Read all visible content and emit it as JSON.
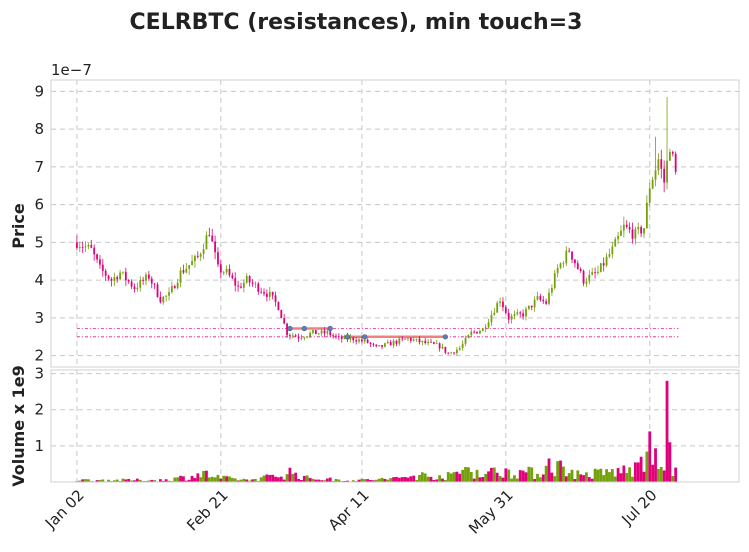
{
  "chart_data": {
    "type": "candlestick",
    "title": "CELRBTC (resistances), min touch=3",
    "price_panel": {
      "ylabel": "Price",
      "exponent_label": "1e−7",
      "yticks": [
        "2",
        "3",
        "4",
        "5",
        "6",
        "7",
        "8",
        "9"
      ],
      "ylim": [
        1.7,
        9.3
      ]
    },
    "volume_panel": {
      "ylabel": "Volume x 1e9",
      "yticks": [
        "1",
        "2",
        "3"
      ],
      "ylim": [
        0,
        3.1
      ]
    },
    "x_ticks": [
      {
        "label": "Jan 02",
        "index": 0
      },
      {
        "label": "Feb 21",
        "index": 50
      },
      {
        "label": "Apr 11",
        "index": 99
      },
      {
        "label": "May 31",
        "index": 149
      },
      {
        "label": "Jul 20",
        "index": 199
      }
    ],
    "x_range": [
      -9,
      230
    ],
    "colors": {
      "up": "#74a00c",
      "down": "#e0007a",
      "resistance": "#f08080",
      "touch_point": "#5d7fb5"
    },
    "resistance_levels": [
      {
        "value": 2.72,
        "start_index": 74,
        "end_index": 88,
        "touch_indices": [
          74,
          79,
          88
        ]
      },
      {
        "value": 2.5,
        "start_index": 94,
        "end_index": 128,
        "touch_indices": [
          94,
          100,
          128
        ]
      }
    ],
    "anchors": [
      [
        0,
        5.0
      ],
      [
        5,
        4.8
      ],
      [
        8,
        4.3
      ],
      [
        12,
        4.0
      ],
      [
        15,
        4.2
      ],
      [
        20,
        3.8
      ],
      [
        25,
        4.1
      ],
      [
        29,
        3.5
      ],
      [
        32,
        3.6
      ],
      [
        36,
        4.2
      ],
      [
        42,
        4.6
      ],
      [
        46,
        5.3
      ],
      [
        49,
        4.3
      ],
      [
        52,
        4.2
      ],
      [
        56,
        3.8
      ],
      [
        59,
        4.0
      ],
      [
        63,
        3.8
      ],
      [
        67,
        3.6
      ],
      [
        70,
        3.3
      ],
      [
        73,
        2.6
      ],
      [
        77,
        2.5
      ],
      [
        82,
        2.6
      ],
      [
        87,
        2.6
      ],
      [
        91,
        2.45
      ],
      [
        96,
        2.45
      ],
      [
        101,
        2.35
      ],
      [
        104,
        2.2
      ],
      [
        110,
        2.35
      ],
      [
        115,
        2.45
      ],
      [
        120,
        2.35
      ],
      [
        126,
        2.25
      ],
      [
        129,
        2.05
      ],
      [
        133,
        2.2
      ],
      [
        137,
        2.6
      ],
      [
        141,
        2.7
      ],
      [
        144,
        3.1
      ],
      [
        147,
        3.5
      ],
      [
        150,
        3.0
      ],
      [
        155,
        3.1
      ],
      [
        160,
        3.5
      ],
      [
        163,
        3.4
      ],
      [
        167,
        4.3
      ],
      [
        171,
        4.8
      ],
      [
        176,
        4.0
      ],
      [
        181,
        4.2
      ],
      [
        186,
        4.8
      ],
      [
        190,
        5.4
      ],
      [
        194,
        5.2
      ],
      [
        197,
        5.4
      ],
      [
        199,
        6.5
      ],
      [
        202,
        7.2
      ],
      [
        204,
        6.6
      ],
      [
        206,
        7.6
      ],
      [
        208,
        6.8
      ]
    ],
    "spikes": [
      [
        205,
        8.85
      ],
      [
        201,
        7.8
      ]
    ],
    "volume_anchors": [
      [
        0,
        0.06
      ],
      [
        30,
        0.06
      ],
      [
        38,
        0.15
      ],
      [
        44,
        0.25
      ],
      [
        50,
        0.12
      ],
      [
        60,
        0.06
      ],
      [
        70,
        0.2
      ],
      [
        74,
        0.3
      ],
      [
        80,
        0.12
      ],
      [
        95,
        0.05
      ],
      [
        110,
        0.1
      ],
      [
        118,
        0.2
      ],
      [
        130,
        0.18
      ],
      [
        136,
        0.45
      ],
      [
        140,
        0.25
      ],
      [
        150,
        0.35
      ],
      [
        160,
        0.25
      ],
      [
        165,
        0.55
      ],
      [
        175,
        0.2
      ],
      [
        185,
        0.3
      ],
      [
        192,
        0.35
      ],
      [
        198,
        0.55
      ],
      [
        204,
        0.7
      ],
      [
        210,
        0.4
      ]
    ],
    "volume_spikes": [
      [
        199,
        1.4
      ],
      [
        205,
        2.8
      ],
      [
        206,
        1.1
      ],
      [
        196,
        0.7
      ],
      [
        164,
        0.65
      ]
    ],
    "n_bars": 209,
    "seed": 7
  }
}
